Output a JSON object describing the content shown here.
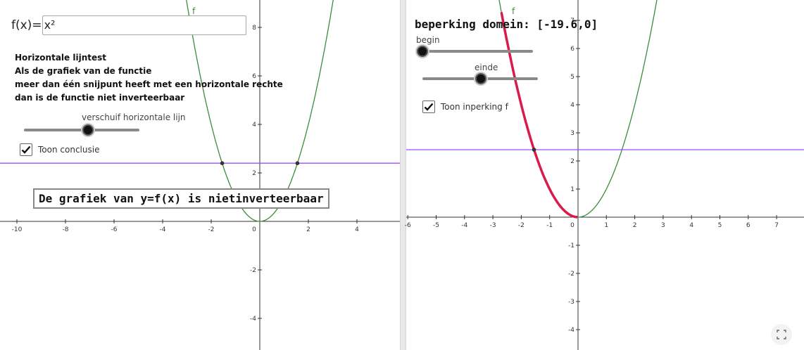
{
  "left": {
    "formula_label": "f(x)=",
    "formula_value": "x²",
    "description": {
      "title": "Horizontale lijntest",
      "line1": "Als de grafiek van de functie",
      "line2": "meer dan één snijpunt heeft met een horizontale rechte",
      "line3": "dan is de functie niet inverteerbaar"
    },
    "slider_label": "verschuif horizontale lijn",
    "checkbox_label": "Toon conclusie",
    "checkbox_checked": true,
    "conclusion": "De grafiek van y=f(x) is nietinverteerbaar",
    "curve_label": "f",
    "horizontal_line_y": 2.4,
    "x_ticks": [
      "-10",
      "-8",
      "-6",
      "-4",
      "-2",
      "0",
      "2",
      "4"
    ],
    "y_ticks": [
      "-4",
      "-2",
      "2",
      "4",
      "6",
      "8"
    ]
  },
  "right": {
    "domain_title": "beperking domein: [-19.6,0]",
    "slider_begin_label": "begin",
    "slider_end_label": "einde",
    "checkbox_label": "Toon inperking f",
    "checkbox_checked": true,
    "curve_label": "f",
    "horizontal_line_y": 2.4,
    "x_ticks": [
      "-6",
      "-5",
      "-4",
      "-3",
      "-2",
      "-1",
      "0",
      "1",
      "2",
      "3",
      "4",
      "5",
      "6",
      "7"
    ],
    "y_ticks": [
      "-4",
      "-3",
      "-2",
      "-1",
      "1",
      "2",
      "3",
      "4",
      "5",
      "6",
      "7"
    ]
  },
  "colors": {
    "curve": "#3c8c3c",
    "restricted_curve": "#d81b4a",
    "horizontal_line": "#9b4dff",
    "points": "#333333"
  }
}
